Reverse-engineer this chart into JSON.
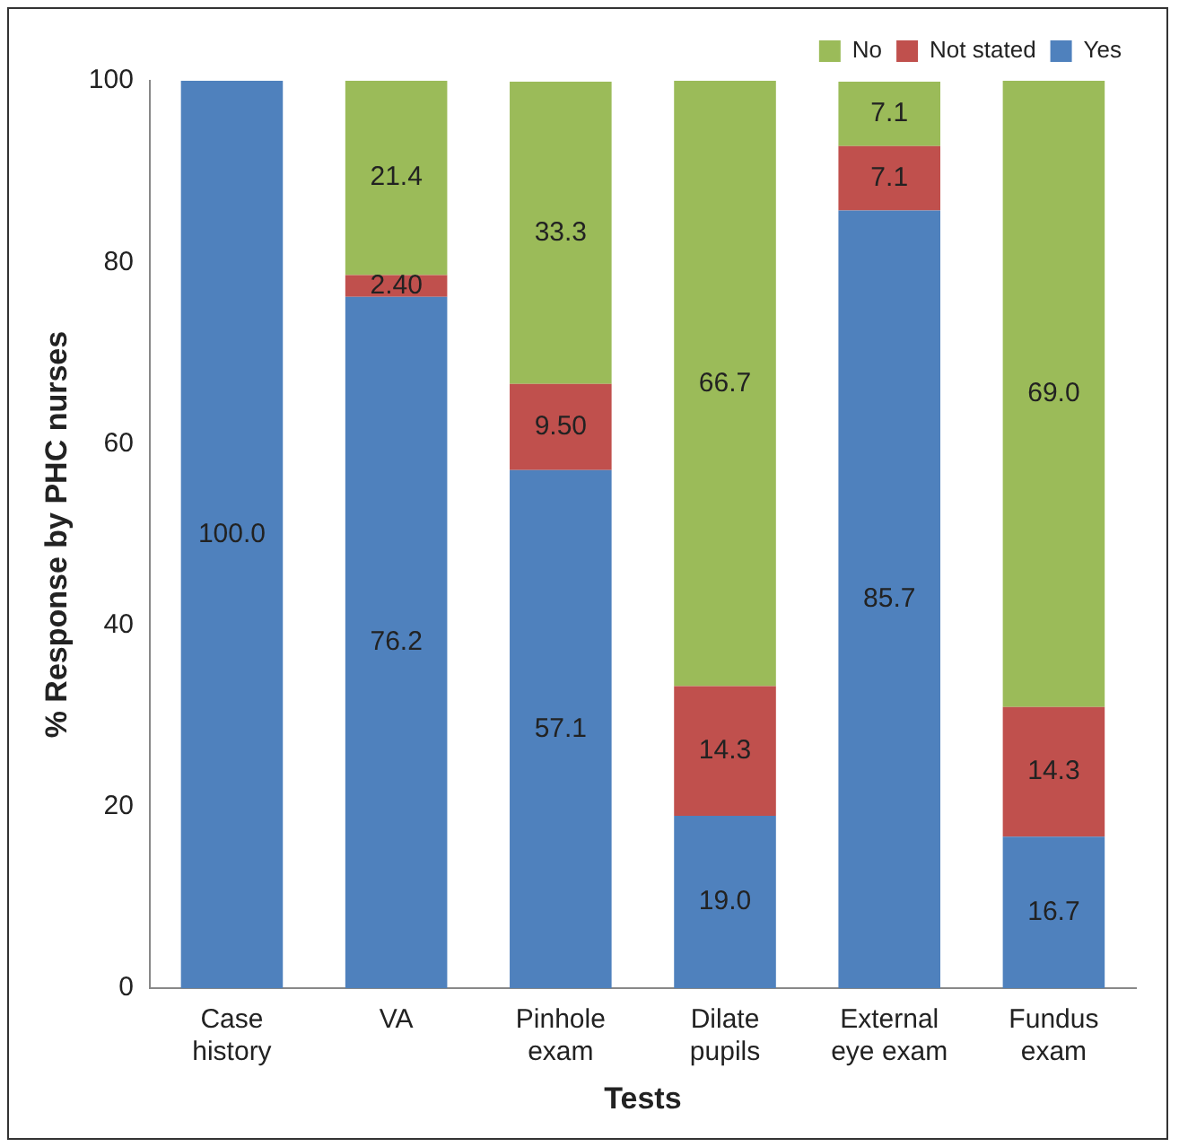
{
  "chart_data": {
    "type": "bar",
    "stacked": true,
    "xlabel": "Tests",
    "ylabel": "% Response by PHC nurses",
    "categories": [
      "Case history",
      "VA",
      "Pinhole exam",
      "Dilate pupils",
      "External eye exam",
      "Fundus exam"
    ],
    "series": [
      {
        "name": "Yes",
        "color": "#4f81bd",
        "values": [
          100.0,
          76.2,
          57.1,
          19.0,
          85.7,
          16.7
        ],
        "value_labels": [
          "100.0",
          "76.2",
          "57.1",
          "19.0",
          "85.7",
          "16.7"
        ]
      },
      {
        "name": "Not stated",
        "color": "#c0504d",
        "values": [
          0,
          2.4,
          9.5,
          14.3,
          7.1,
          14.3
        ],
        "value_labels": [
          null,
          "2.40",
          "9.50",
          "14.3",
          "7.1",
          "14.3"
        ]
      },
      {
        "name": "No",
        "color": "#9bbb59",
        "values": [
          0,
          21.4,
          33.3,
          66.7,
          7.1,
          69.0
        ],
        "value_labels": [
          null,
          "21.4",
          "33.3",
          "66.7",
          "7.1",
          "69.0"
        ]
      }
    ],
    "ylim": [
      0,
      100
    ],
    "yticks": [
      0,
      20,
      40,
      60,
      80,
      100
    ],
    "grid": false,
    "legend": "top right"
  }
}
